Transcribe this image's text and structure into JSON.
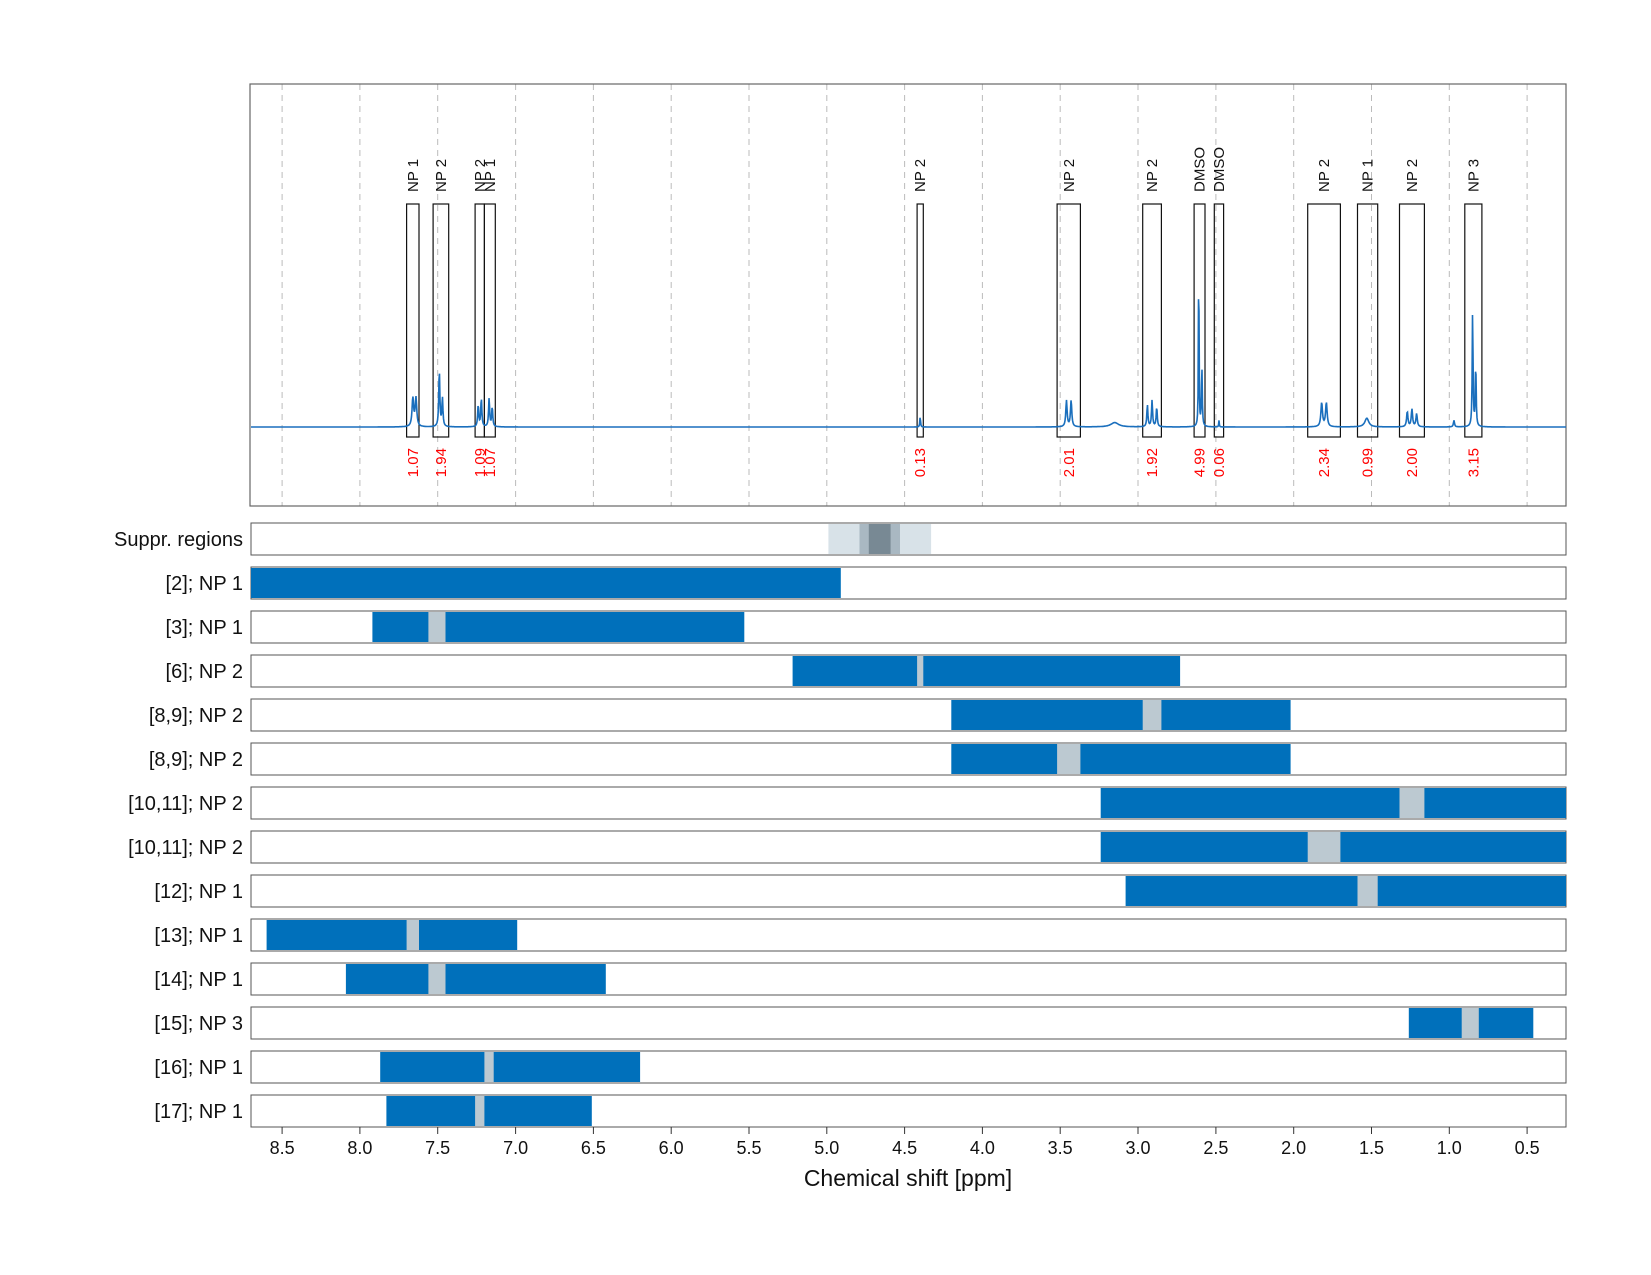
{
  "chart_data": {
    "type": "line",
    "xlabel": "Chemical shift [ppm]",
    "xlim": [
      8.7,
      0.25
    ],
    "xticks": [
      8.5,
      8.0,
      7.5,
      7.0,
      6.5,
      6.0,
      5.5,
      5.0,
      4.5,
      4.0,
      3.5,
      3.0,
      2.5,
      2.0,
      1.5,
      1.0,
      0.5
    ],
    "grid": true,
    "colors": {
      "spectrum": "#1a6fbd",
      "bar": "#0070bb",
      "gap": "#bcc9d1",
      "integral_text": "#ff0000"
    },
    "peak_boxes": [
      {
        "label": "NP 1",
        "from": 7.7,
        "to": 7.62,
        "integral": "1.07"
      },
      {
        "label": "NP 2",
        "from": 7.53,
        "to": 7.43,
        "integral": "1.94"
      },
      {
        "label": "NP 2",
        "from": 7.26,
        "to": 7.2,
        "integral": "1.09"
      },
      {
        "label": "NP 1",
        "from": 7.2,
        "to": 7.13,
        "integral": "1.07"
      },
      {
        "label": "NP 2",
        "from": 4.42,
        "to": 4.38,
        "integral": "0.13"
      },
      {
        "label": "NP 2",
        "from": 3.52,
        "to": 3.37,
        "integral": "2.01"
      },
      {
        "label": "NP 2",
        "from": 2.97,
        "to": 2.85,
        "integral": "1.92"
      },
      {
        "label": "DMSO",
        "from": 2.64,
        "to": 2.57,
        "integral": "4.99"
      },
      {
        "label": "DMSO",
        "from": 2.51,
        "to": 2.45,
        "integral": "0.06"
      },
      {
        "label": "NP 2",
        "from": 1.91,
        "to": 1.7,
        "integral": "2.34"
      },
      {
        "label": "NP 1",
        "from": 1.59,
        "to": 1.46,
        "integral": "0.99"
      },
      {
        "label": "NP 2",
        "from": 1.32,
        "to": 1.16,
        "integral": "2.00"
      },
      {
        "label": "NP 3",
        "from": 0.9,
        "to": 0.79,
        "integral": "3.15"
      }
    ],
    "spectrum_peaks": [
      {
        "ppm": 7.66,
        "height": 0.13,
        "width": 0.012
      },
      {
        "ppm": 7.64,
        "height": 0.13,
        "width": 0.012
      },
      {
        "ppm": 7.49,
        "height": 0.26,
        "width": 0.008
      },
      {
        "ppm": 7.47,
        "height": 0.13,
        "width": 0.008
      },
      {
        "ppm": 7.24,
        "height": 0.1,
        "width": 0.008
      },
      {
        "ppm": 7.22,
        "height": 0.13,
        "width": 0.008
      },
      {
        "ppm": 7.17,
        "height": 0.13,
        "width": 0.008
      },
      {
        "ppm": 7.15,
        "height": 0.09,
        "width": 0.008
      },
      {
        "ppm": 4.4,
        "height": 0.05,
        "width": 0.005
      },
      {
        "ppm": 3.46,
        "height": 0.12,
        "width": 0.01
      },
      {
        "ppm": 3.43,
        "height": 0.12,
        "width": 0.01
      },
      {
        "ppm": 3.15,
        "height": 0.02,
        "width": 0.06
      },
      {
        "ppm": 2.94,
        "height": 0.1,
        "width": 0.008
      },
      {
        "ppm": 2.91,
        "height": 0.12,
        "width": 0.008
      },
      {
        "ppm": 2.88,
        "height": 0.09,
        "width": 0.008
      },
      {
        "ppm": 2.61,
        "height": 0.9,
        "width": 0.004
      },
      {
        "ppm": 2.59,
        "height": 0.28,
        "width": 0.006
      },
      {
        "ppm": 2.48,
        "height": 0.03,
        "width": 0.004
      },
      {
        "ppm": 1.82,
        "height": 0.11,
        "width": 0.012
      },
      {
        "ppm": 1.79,
        "height": 0.11,
        "width": 0.012
      },
      {
        "ppm": 1.53,
        "height": 0.04,
        "width": 0.03
      },
      {
        "ppm": 1.27,
        "height": 0.07,
        "width": 0.01
      },
      {
        "ppm": 1.24,
        "height": 0.08,
        "width": 0.01
      },
      {
        "ppm": 1.21,
        "height": 0.06,
        "width": 0.01
      },
      {
        "ppm": 0.97,
        "height": 0.03,
        "width": 0.008
      },
      {
        "ppm": 0.85,
        "height": 0.54,
        "width": 0.006
      },
      {
        "ppm": 0.83,
        "height": 0.3,
        "width": 0.006
      }
    ],
    "suppression_regions": {
      "label": "Suppr. regions",
      "bands": [
        {
          "from": 4.99,
          "to": 4.33,
          "level": 1
        },
        {
          "from": 4.79,
          "to": 4.53,
          "level": 2
        },
        {
          "from": 4.73,
          "to": 4.59,
          "level": 3
        }
      ]
    },
    "rows": [
      {
        "label": "[2]; NP 1",
        "from": 8.7,
        "to": 4.91,
        "gap": null
      },
      {
        "label": "[3]; NP 1",
        "from": 7.92,
        "to": 5.53,
        "gap": [
          7.56,
          7.45
        ]
      },
      {
        "label": "[6]; NP 2",
        "from": 5.22,
        "to": 2.73,
        "gap": [
          4.42,
          4.38
        ]
      },
      {
        "label": "[8,9]; NP 2",
        "from": 4.2,
        "to": 2.02,
        "gap": [
          2.97,
          2.85
        ]
      },
      {
        "label": "[8,9]; NP 2",
        "from": 4.2,
        "to": 2.02,
        "gap": [
          3.52,
          3.37
        ]
      },
      {
        "label": "[10,11]; NP 2",
        "from": 3.24,
        "to": 0.25,
        "gap": [
          1.32,
          1.16
        ]
      },
      {
        "label": "[10,11]; NP 2",
        "from": 3.24,
        "to": 0.25,
        "gap": [
          1.91,
          1.7
        ]
      },
      {
        "label": "[12]; NP 1",
        "from": 3.08,
        "to": 0.25,
        "gap": [
          1.59,
          1.46
        ]
      },
      {
        "label": "[13]; NP 1",
        "from": 8.6,
        "to": 6.99,
        "gap": [
          7.7,
          7.62
        ]
      },
      {
        "label": "[14]; NP 1",
        "from": 8.09,
        "to": 6.42,
        "gap": [
          7.56,
          7.45
        ]
      },
      {
        "label": "[15]; NP 3",
        "from": 1.26,
        "to": 0.46,
        "gap": [
          0.92,
          0.81
        ]
      },
      {
        "label": "[16]; NP 1",
        "from": 7.87,
        "to": 6.2,
        "gap": [
          7.2,
          7.14
        ]
      },
      {
        "label": "[17]; NP 1",
        "from": 7.83,
        "to": 6.51,
        "gap": [
          7.26,
          7.2
        ]
      }
    ]
  }
}
